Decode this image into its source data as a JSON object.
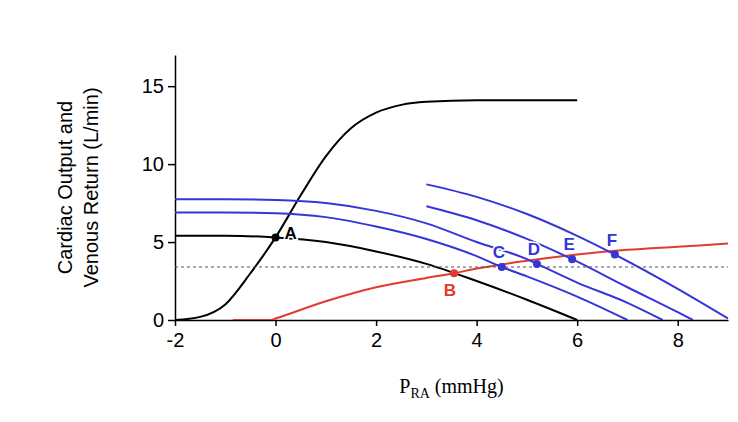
{
  "chart_data": {
    "type": "line",
    "xlabel": [
      "P",
      "RA",
      " (mmHg)"
    ],
    "ylabel": [
      "Cardiac Output and",
      "Venous Return (L/min)"
    ],
    "xlim": [
      -2,
      9
    ],
    "ylim": [
      0,
      17
    ],
    "xticks": [
      -2,
      0,
      2,
      4,
      6,
      8
    ],
    "yticks": [
      0,
      5,
      10,
      15
    ],
    "series": [
      {
        "color": "#000000",
        "line_style": "solid",
        "x": [
          -2,
          -1.5,
          -1,
          -0.5,
          0,
          0.5,
          1,
          1.5,
          2,
          2.5,
          3,
          4,
          6
        ],
        "values": [
          0,
          0.2,
          1,
          3,
          5.3,
          8,
          10.5,
          12.3,
          13.3,
          13.8,
          14,
          14.1,
          14.1
        ]
      },
      {
        "color": "#000000",
        "line_style": "solid",
        "x": [
          -2,
          -1,
          0,
          1,
          2,
          3,
          4,
          5,
          6
        ],
        "values": [
          5.4,
          5.4,
          5.3,
          5,
          4.4,
          3.6,
          2.5,
          1.3,
          0
        ]
      },
      {
        "color": "#e33a2e",
        "line_style": "solid",
        "x": [
          -0.85,
          -0.1,
          0,
          1,
          2,
          3,
          3.55,
          4,
          5,
          6,
          7,
          8,
          9
        ],
        "values": [
          0,
          0,
          0.1,
          1.2,
          2.1,
          2.7,
          3.0,
          3.3,
          3.8,
          4.2,
          4.5,
          4.7,
          4.9
        ]
      },
      {
        "color": "#3535d8",
        "line_style": "solid",
        "x": [
          -2,
          -1,
          0,
          1,
          2,
          3,
          4,
          4.5,
          5,
          6,
          7
        ],
        "values": [
          6.9,
          6.9,
          6.85,
          6.6,
          6.0,
          5.2,
          4.1,
          3.4,
          2.8,
          1.5,
          0
        ]
      },
      {
        "color": "#3535d8",
        "line_style": "solid",
        "x": [
          -2,
          -1,
          0,
          1,
          2,
          3,
          4,
          5,
          5.2,
          6,
          7,
          7.7
        ],
        "values": [
          7.75,
          7.75,
          7.7,
          7.5,
          7.0,
          6.2,
          5.0,
          3.9,
          3.6,
          2.4,
          1.1,
          0
        ]
      },
      {
        "color": "#3535d8",
        "line_style": "solid",
        "x": [
          3,
          4,
          5,
          5.9,
          7,
          8,
          8.3
        ],
        "values": [
          7.3,
          6.4,
          5.2,
          3.9,
          2.1,
          0.5,
          0
        ]
      },
      {
        "color": "#3535d8",
        "line_style": "solid",
        "x": [
          3,
          4,
          5,
          6,
          6.75,
          8,
          9
        ],
        "values": [
          8.7,
          7.9,
          6.8,
          5.4,
          4.2,
          2.0,
          0.1
        ]
      },
      {
        "color": "#555555",
        "line_style": "dashed",
        "x": [
          -2,
          9
        ],
        "values": [
          3.4,
          3.4
        ]
      }
    ],
    "points": [
      {
        "label": "A",
        "x": 0,
        "y": 5.3,
        "color": "#000000",
        "marker": "circle"
      },
      {
        "label": "B",
        "x": 3.55,
        "y": 3.0,
        "color": "#e33a2e",
        "marker": "circle"
      },
      {
        "label": "C",
        "x": 4.5,
        "y": 3.4,
        "color": "#3535d8",
        "marker": "circle"
      },
      {
        "label": "D",
        "x": 5.2,
        "y": 3.6,
        "color": "#3535d8",
        "marker": "circle"
      },
      {
        "label": "E",
        "x": 5.9,
        "y": 3.9,
        "color": "#3535d8",
        "marker": "circle"
      },
      {
        "label": "F",
        "x": 6.75,
        "y": 4.2,
        "color": "#3535d8",
        "marker": "circle"
      }
    ]
  }
}
